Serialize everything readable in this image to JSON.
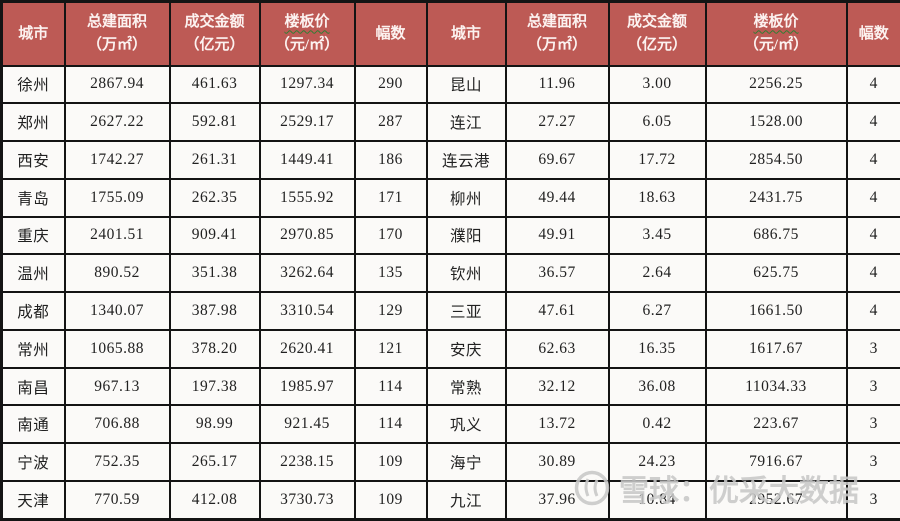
{
  "chart_data": {
    "type": "table",
    "header": {
      "city": "城市",
      "area": "总建面积",
      "area_unit": "（万㎡）",
      "amount": "成交金额",
      "amount_unit": "（亿元）",
      "price": "楼板价",
      "price_unit": "（元/㎡）",
      "plots": "幅数"
    },
    "left_rows": [
      {
        "city": "徐州",
        "area": "2867.94",
        "amount": "461.63",
        "price": "1297.34",
        "plots": "290"
      },
      {
        "city": "郑州",
        "area": "2627.22",
        "amount": "592.81",
        "price": "2529.17",
        "plots": "287"
      },
      {
        "city": "西安",
        "area": "1742.27",
        "amount": "261.31",
        "price": "1449.41",
        "plots": "186"
      },
      {
        "city": "青岛",
        "area": "1755.09",
        "amount": "262.35",
        "price": "1555.92",
        "plots": "171"
      },
      {
        "city": "重庆",
        "area": "2401.51",
        "amount": "909.41",
        "price": "2970.85",
        "plots": "170"
      },
      {
        "city": "温州",
        "area": "890.52",
        "amount": "351.38",
        "price": "3262.64",
        "plots": "135"
      },
      {
        "city": "成都",
        "area": "1340.07",
        "amount": "387.98",
        "price": "3310.54",
        "plots": "129"
      },
      {
        "city": "常州",
        "area": "1065.88",
        "amount": "378.20",
        "price": "2620.41",
        "plots": "121"
      },
      {
        "city": "南昌",
        "area": "967.13",
        "amount": "197.38",
        "price": "1985.97",
        "plots": "114"
      },
      {
        "city": "南通",
        "area": "706.88",
        "amount": "98.99",
        "price": "921.45",
        "plots": "114"
      },
      {
        "city": "宁波",
        "area": "752.35",
        "amount": "265.17",
        "price": "2238.15",
        "plots": "109"
      },
      {
        "city": "天津",
        "area": "770.59",
        "amount": "412.08",
        "price": "3730.73",
        "plots": "109"
      }
    ],
    "right_rows": [
      {
        "city": "昆山",
        "area": "11.96",
        "amount": "3.00",
        "price": "2256.25",
        "plots": "4"
      },
      {
        "city": "连江",
        "area": "27.27",
        "amount": "6.05",
        "price": "1528.00",
        "plots": "4"
      },
      {
        "city": "连云港",
        "area": "69.67",
        "amount": "17.72",
        "price": "2854.50",
        "plots": "4"
      },
      {
        "city": "柳州",
        "area": "49.44",
        "amount": "18.63",
        "price": "2431.75",
        "plots": "4"
      },
      {
        "city": "濮阳",
        "area": "49.91",
        "amount": "3.45",
        "price": "686.75",
        "plots": "4"
      },
      {
        "city": "钦州",
        "area": "36.57",
        "amount": "2.64",
        "price": "625.75",
        "plots": "4"
      },
      {
        "city": "三亚",
        "area": "47.61",
        "amount": "6.27",
        "price": "1661.50",
        "plots": "4"
      },
      {
        "city": "安庆",
        "area": "62.63",
        "amount": "16.35",
        "price": "1617.67",
        "plots": "3"
      },
      {
        "city": "常熟",
        "area": "32.12",
        "amount": "36.08",
        "price": "11034.33",
        "plots": "3"
      },
      {
        "city": "巩义",
        "area": "13.72",
        "amount": "0.42",
        "price": "223.67",
        "plots": "3"
      },
      {
        "city": "海宁",
        "area": "30.89",
        "amount": "24.23",
        "price": "7916.67",
        "plots": "3"
      },
      {
        "city": "九江",
        "area": "37.96",
        "amount": "10.84",
        "price": "2952.67",
        "plots": "3"
      }
    ]
  },
  "watermark": {
    "brand_text": "雪球：优采大数据",
    "logo": "xueqiu-snowball-logo"
  },
  "colors": {
    "header_bg": "#BD5A55",
    "header_text": "#FCF2F0",
    "grid_line": "#141414",
    "row_bg": "#FBFAF8",
    "body_text": "#212121",
    "price_squiggle": "#2F7D32",
    "watermark": "#C8C8C8"
  }
}
